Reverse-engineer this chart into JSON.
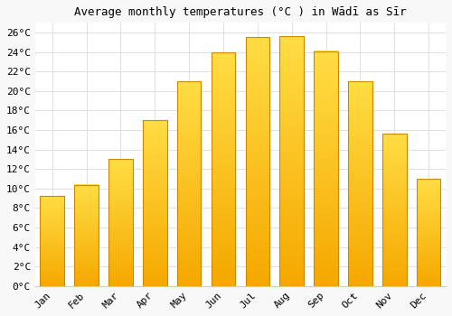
{
  "months": [
    "Jan",
    "Feb",
    "Mar",
    "Apr",
    "May",
    "Jun",
    "Jul",
    "Aug",
    "Sep",
    "Oct",
    "Nov",
    "Dec"
  ],
  "temperatures": [
    9.2,
    10.4,
    13.0,
    17.0,
    21.0,
    24.0,
    25.5,
    25.6,
    24.1,
    21.0,
    15.6,
    11.0
  ],
  "bar_color_top": "#FFDD44",
  "bar_color_bottom": "#F5A800",
  "bar_color_edge": "#CC8800",
  "ylim": [
    0,
    27
  ],
  "ytick_step": 2,
  "title": "Average monthly temperatures (°C ) in Wādī as Sīr",
  "title_fontsize": 9,
  "tick_fontsize": 8,
  "bg_color": "#f8f8f8",
  "plot_bg_color": "#ffffff",
  "grid_color": "#e0e0e0",
  "figsize": [
    5.0,
    3.5
  ],
  "dpi": 100
}
